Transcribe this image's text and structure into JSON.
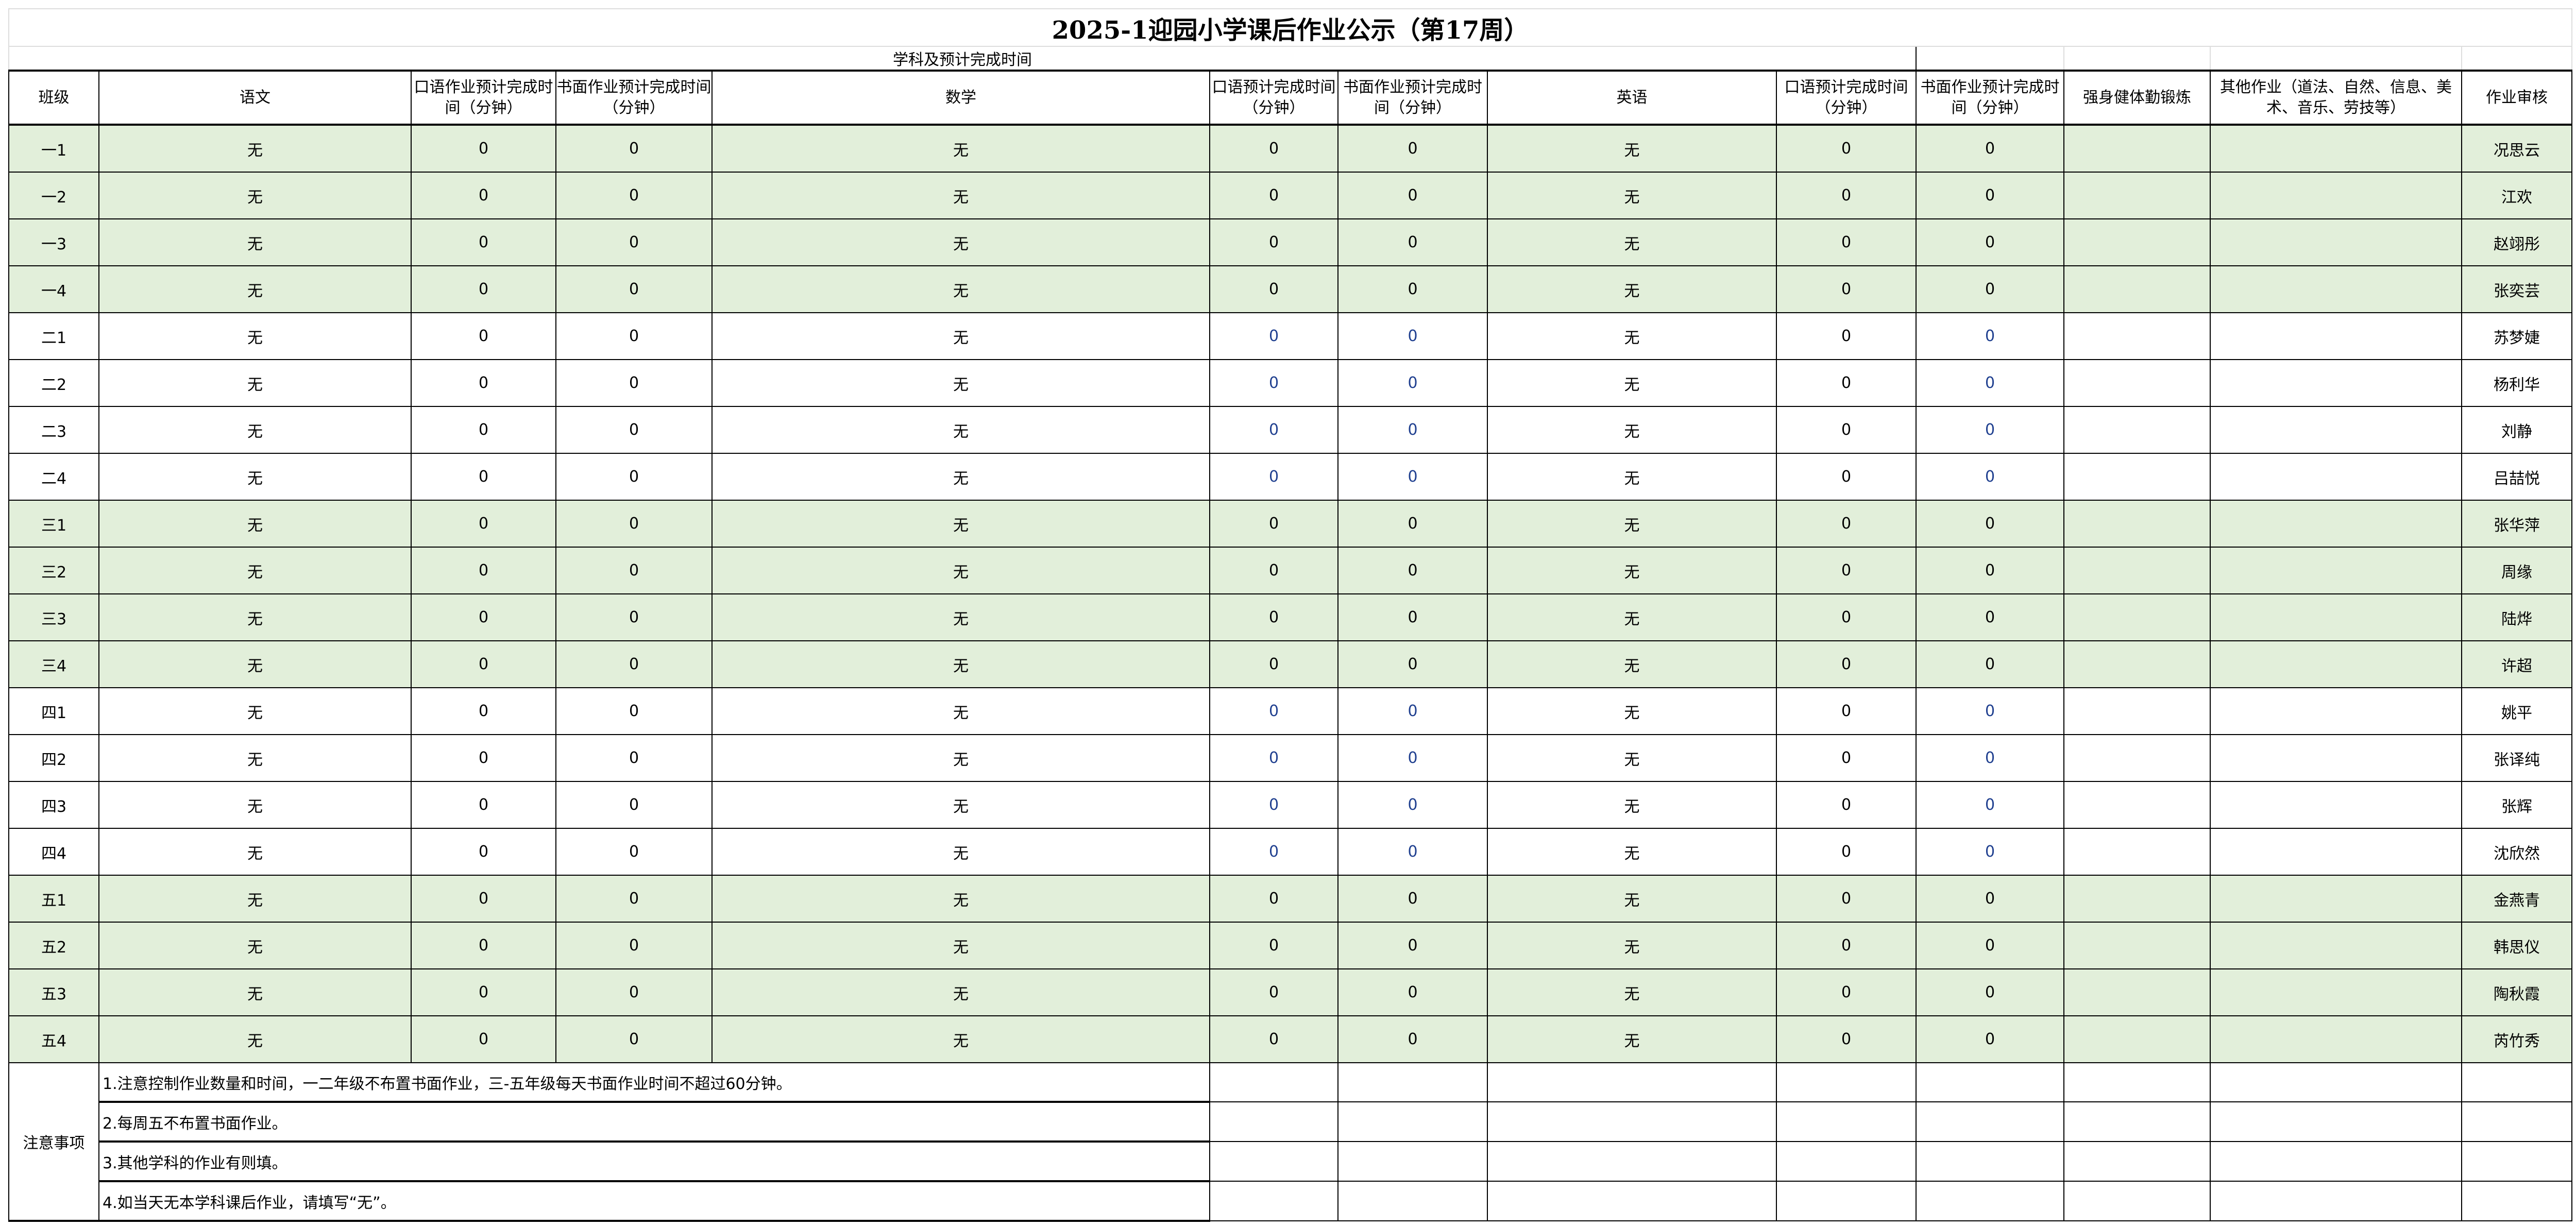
{
  "title": "2025-1迎园小学课后作业公示（第17周）",
  "subheader": "学科及预计完成时间",
  "headers": [
    "班级",
    "语文",
    "口语作业预计完成时间（分钟）",
    "书面作业预计完成时间（分钟）",
    "数学",
    "口语预计完成时间（分钟）",
    "书面作业预计完成时间（分钟）",
    "英语",
    "口语预计完成时间（分钟）",
    "书面作业预计完成时间（分钟）",
    "强身健体勤锻炼",
    "其他作业（道法、自然、信息、美术、音乐、劳技等）",
    "作业审核"
  ],
  "row_highlight_color": "#e2efda",
  "rows": [
    {
      "class": "一1",
      "chinese": "无",
      "c_oral": "0",
      "c_written": "0",
      "math": "无",
      "m_oral": "0",
      "m_written": "0",
      "english": "无",
      "e_oral": "0",
      "e_written": "0",
      "exercise": "",
      "other": "",
      "reviewer": "况思云",
      "green": true
    },
    {
      "class": "一2",
      "chinese": "无",
      "c_oral": "0",
      "c_written": "0",
      "math": "无",
      "m_oral": "0",
      "m_written": "0",
      "english": "无",
      "e_oral": "0",
      "e_written": "0",
      "exercise": "",
      "other": "",
      "reviewer": "江欢",
      "green": true
    },
    {
      "class": "一3",
      "chinese": "无",
      "c_oral": "0",
      "c_written": "0",
      "math": "无",
      "m_oral": "0",
      "m_written": "0",
      "english": "无",
      "e_oral": "0",
      "e_written": "0",
      "exercise": "",
      "other": "",
      "reviewer": "赵翊彤",
      "green": true
    },
    {
      "class": "一4",
      "chinese": "无",
      "c_oral": "0",
      "c_written": "0",
      "math": "无",
      "m_oral": "0",
      "m_written": "0",
      "english": "无",
      "e_oral": "0",
      "e_written": "0",
      "exercise": "",
      "other": "",
      "reviewer": "张奕芸",
      "green": true
    },
    {
      "class": "二1",
      "chinese": "无",
      "c_oral": "0",
      "c_written": "0",
      "math": "无",
      "m_oral": "0",
      "m_written": "0",
      "english": "无",
      "e_oral": "0",
      "e_written": "0",
      "exercise": "",
      "other": "",
      "reviewer": "苏梦婕",
      "green": false
    },
    {
      "class": "二2",
      "chinese": "无",
      "c_oral": "0",
      "c_written": "0",
      "math": "无",
      "m_oral": "0",
      "m_written": "0",
      "english": "无",
      "e_oral": "0",
      "e_written": "0",
      "exercise": "",
      "other": "",
      "reviewer": "杨利华",
      "green": false
    },
    {
      "class": "二3",
      "chinese": "无",
      "c_oral": "0",
      "c_written": "0",
      "math": "无",
      "m_oral": "0",
      "m_written": "0",
      "english": "无",
      "e_oral": "0",
      "e_written": "0",
      "exercise": "",
      "other": "",
      "reviewer": "刘静",
      "green": false
    },
    {
      "class": "二4",
      "chinese": "无",
      "c_oral": "0",
      "c_written": "0",
      "math": "无",
      "m_oral": "0",
      "m_written": "0",
      "english": "无",
      "e_oral": "0",
      "e_written": "0",
      "exercise": "",
      "other": "",
      "reviewer": "吕喆悦",
      "green": false
    },
    {
      "class": "三1",
      "chinese": "无",
      "c_oral": "0",
      "c_written": "0",
      "math": "无",
      "m_oral": "0",
      "m_written": "0",
      "english": "无",
      "e_oral": "0",
      "e_written": "0",
      "exercise": "",
      "other": "",
      "reviewer": "张华萍",
      "green": true
    },
    {
      "class": "三2",
      "chinese": "无",
      "c_oral": "0",
      "c_written": "0",
      "math": "无",
      "m_oral": "0",
      "m_written": "0",
      "english": "无",
      "e_oral": "0",
      "e_written": "0",
      "exercise": "",
      "other": "",
      "reviewer": "周缘",
      "green": true
    },
    {
      "class": "三3",
      "chinese": "无",
      "c_oral": "0",
      "c_written": "0",
      "math": "无",
      "m_oral": "0",
      "m_written": "0",
      "english": "无",
      "e_oral": "0",
      "e_written": "0",
      "exercise": "",
      "other": "",
      "reviewer": "陆烨",
      "green": true
    },
    {
      "class": "三4",
      "chinese": "无",
      "c_oral": "0",
      "c_written": "0",
      "math": "无",
      "m_oral": "0",
      "m_written": "0",
      "english": "无",
      "e_oral": "0",
      "e_written": "0",
      "exercise": "",
      "other": "",
      "reviewer": "许超",
      "green": true
    },
    {
      "class": "四1",
      "chinese": "无",
      "c_oral": "0",
      "c_written": "0",
      "math": "无",
      "m_oral": "0",
      "m_written": "0",
      "english": "无",
      "e_oral": "0",
      "e_written": "0",
      "exercise": "",
      "other": "",
      "reviewer": "姚平",
      "green": false
    },
    {
      "class": "四2",
      "chinese": "无",
      "c_oral": "0",
      "c_written": "0",
      "math": "无",
      "m_oral": "0",
      "m_written": "0",
      "english": "无",
      "e_oral": "0",
      "e_written": "0",
      "exercise": "",
      "other": "",
      "reviewer": "张译纯",
      "green": false
    },
    {
      "class": "四3",
      "chinese": "无",
      "c_oral": "0",
      "c_written": "0",
      "math": "无",
      "m_oral": "0",
      "m_written": "0",
      "english": "无",
      "e_oral": "0",
      "e_written": "0",
      "exercise": "",
      "other": "",
      "reviewer": "张辉",
      "green": false
    },
    {
      "class": "四4",
      "chinese": "无",
      "c_oral": "0",
      "c_written": "0",
      "math": "无",
      "m_oral": "0",
      "m_written": "0",
      "english": "无",
      "e_oral": "0",
      "e_written": "0",
      "exercise": "",
      "other": "",
      "reviewer": "沈欣然",
      "green": false
    },
    {
      "class": "五1",
      "chinese": "无",
      "c_oral": "0",
      "c_written": "0",
      "math": "无",
      "m_oral": "0",
      "m_written": "0",
      "english": "无",
      "e_oral": "0",
      "e_written": "0",
      "exercise": "",
      "other": "",
      "reviewer": "金燕青",
      "green": true
    },
    {
      "class": "五2",
      "chinese": "无",
      "c_oral": "0",
      "c_written": "0",
      "math": "无",
      "m_oral": "0",
      "m_written": "0",
      "english": "无",
      "e_oral": "0",
      "e_written": "0",
      "exercise": "",
      "other": "",
      "reviewer": "韩思仪",
      "green": true
    },
    {
      "class": "五3",
      "chinese": "无",
      "c_oral": "0",
      "c_written": "0",
      "math": "无",
      "m_oral": "0",
      "m_written": "0",
      "english": "无",
      "e_oral": "0",
      "e_written": "0",
      "exercise": "",
      "other": "",
      "reviewer": "陶秋霞",
      "green": true
    },
    {
      "class": "五4",
      "chinese": "无",
      "c_oral": "0",
      "c_written": "0",
      "math": "无",
      "m_oral": "0",
      "m_written": "0",
      "english": "无",
      "e_oral": "0",
      "e_written": "0",
      "exercise": "",
      "other": "",
      "reviewer": "芮竹秀",
      "green": true
    }
  ],
  "notes": {
    "label": "注意事项",
    "items": [
      "1.注意控制作业数量和时间，一二年级不布置书面作业，三-五年级每天书面作业时间不超过60分钟。",
      "2.每周五不布置书面作业。",
      "3.其他学科的作业有则填。",
      "4.如当天无本学科课后作业，请填写“无”。"
    ]
  }
}
